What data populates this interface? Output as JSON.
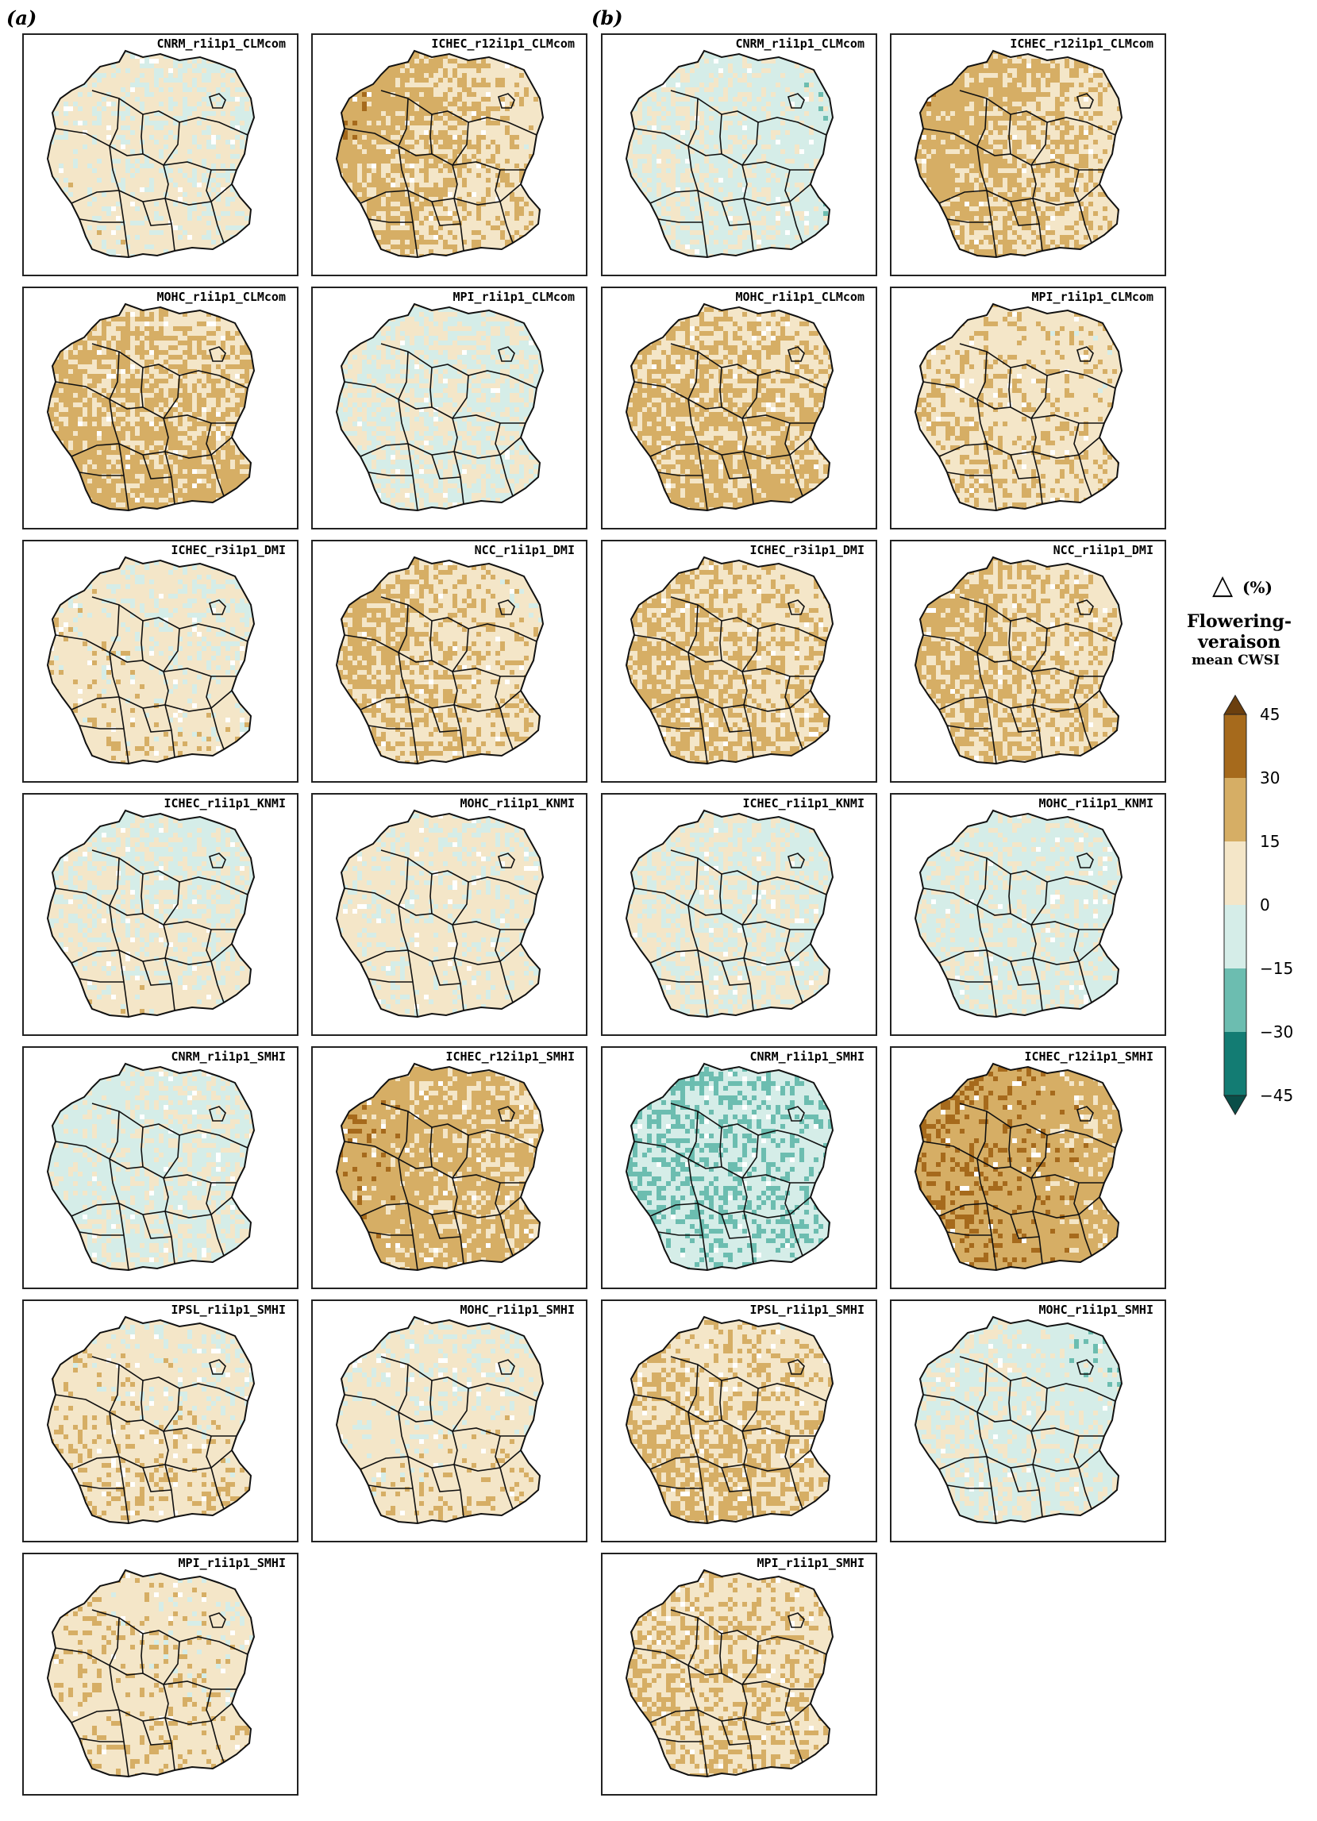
{
  "panel_labels": [
    "(a)",
    "(b)"
  ],
  "legend": {
    "symbol": "△",
    "unit": "(%)",
    "title_line1": "Flowering-",
    "title_line2": "veraison",
    "title_line3": "mean CWSI",
    "ticks": [
      "45",
      "30",
      "15",
      "0",
      "−15",
      "−30",
      "−45"
    ],
    "colors": [
      "#a66a1c",
      "#d6ae65",
      "#f4e6c8",
      "#d5ede8",
      "#6cbdb0",
      "#137c73"
    ],
    "extend_max_color": "#6b3f0e",
    "extend_min_color": "#0a4e48"
  },
  "maps": {
    "a": [
      {
        "title": "CNRM_r1i1p1_CLMcom",
        "mean": 4,
        "northwest": 6,
        "southwest": 10,
        "northeast": -6,
        "southeast": 6
      },
      {
        "title": "ICHEC_r12i1p1_CLMcom",
        "mean": 14,
        "northwest": 38,
        "southwest": 20,
        "northeast": -2,
        "southeast": 6
      },
      {
        "title": "MOHC_r1i1p1_CLMcom",
        "mean": 16,
        "northwest": 18,
        "southwest": 22,
        "northeast": 4,
        "southeast": 28
      },
      {
        "title": "MPI_r1i1p1_CLMcom",
        "mean": -1,
        "northwest": 2,
        "southwest": 0,
        "northeast": -4,
        "southeast": 3
      },
      {
        "title": "ICHEC_r3i1p1_DMI",
        "mean": 6,
        "northwest": 8,
        "southwest": 12,
        "northeast": -4,
        "southeast": 10
      },
      {
        "title": "NCC_r1i1p1_DMI",
        "mean": 12,
        "northwest": 26,
        "southwest": 16,
        "northeast": -2,
        "southeast": 12
      },
      {
        "title": "ICHEC_r1i1p1_KNMI",
        "mean": 2,
        "northwest": -6,
        "southwest": 14,
        "northeast": -12,
        "southeast": 10
      },
      {
        "title": "MOHC_r1i1p1_KNMI",
        "mean": 4,
        "northwest": 2,
        "southwest": 8,
        "northeast": 2,
        "southeast": 8
      },
      {
        "title": "CNRM_r1i1p1_SMHI",
        "mean": -3,
        "northwest": -10,
        "southwest": -4,
        "northeast": -2,
        "southeast": 2
      },
      {
        "title": "ICHEC_r12i1p1_SMHI",
        "mean": 20,
        "northwest": 30,
        "southwest": 24,
        "northeast": 8,
        "southeast": 16
      },
      {
        "title": "IPSL_r1i1p1_SMHI",
        "mean": 8,
        "northwest": 8,
        "southwest": 16,
        "northeast": -2,
        "southeast": 12
      },
      {
        "title": "MOHC_r1i1p1_SMHI",
        "mean": 6,
        "northwest": 2,
        "southwest": 10,
        "northeast": -2,
        "southeast": 16
      },
      {
        "title": "MPI_r1i1p1_SMHI",
        "mean": 8,
        "northwest": 12,
        "southwest": 10,
        "northeast": 2,
        "southeast": 12
      }
    ],
    "b": [
      {
        "title": "CNRM_r1i1p1_CLMcom",
        "mean": -4,
        "northwest": 2,
        "southwest": 4,
        "northeast": -10,
        "southeast": -8
      },
      {
        "title": "ICHEC_r12i1p1_CLMcom",
        "mean": 16,
        "northwest": 32,
        "southwest": 22,
        "northeast": 2,
        "southeast": 8
      },
      {
        "title": "MOHC_r1i1p1_CLMcom",
        "mean": 16,
        "northwest": 18,
        "southwest": 20,
        "northeast": 4,
        "southeast": 26
      },
      {
        "title": "MPI_r1i1p1_CLMcom",
        "mean": 10,
        "northwest": 12,
        "southwest": 18,
        "northeast": 4,
        "southeast": 10
      },
      {
        "title": "ICHEC_r3i1p1_DMI",
        "mean": 14,
        "northwest": 20,
        "southwest": 22,
        "northeast": 2,
        "southeast": 14
      },
      {
        "title": "NCC_r1i1p1_DMI",
        "mean": 14,
        "northwest": 28,
        "southwest": 18,
        "northeast": 0,
        "southeast": 14
      },
      {
        "title": "ICHEC_r1i1p1_KNMI",
        "mean": 0,
        "northwest": 2,
        "southwest": 6,
        "northeast": -10,
        "southeast": 2
      },
      {
        "title": "MOHC_r1i1p1_KNMI",
        "mean": -4,
        "northwest": -4,
        "southwest": -2,
        "northeast": -6,
        "southeast": -2
      },
      {
        "title": "CNRM_r1i1p1_SMHI",
        "mean": -12,
        "northwest": -18,
        "southwest": -14,
        "northeast": -10,
        "southeast": -8
      },
      {
        "title": "ICHEC_r12i1p1_SMHI",
        "mean": 24,
        "northwest": 34,
        "southwest": 28,
        "northeast": 16,
        "southeast": 18
      },
      {
        "title": "IPSL_r1i1p1_SMHI",
        "mean": 14,
        "northwest": 10,
        "southwest": 26,
        "northeast": 2,
        "southeast": 16
      },
      {
        "title": "MOHC_r1i1p1_SMHI",
        "mean": -4,
        "northwest": 2,
        "southwest": 2,
        "northeast": -14,
        "southeast": -2
      },
      {
        "title": "MPI_r1i1p1_SMHI",
        "mean": 12,
        "northwest": 16,
        "southwest": 14,
        "northeast": 6,
        "southeast": 14
      }
    ]
  }
}
